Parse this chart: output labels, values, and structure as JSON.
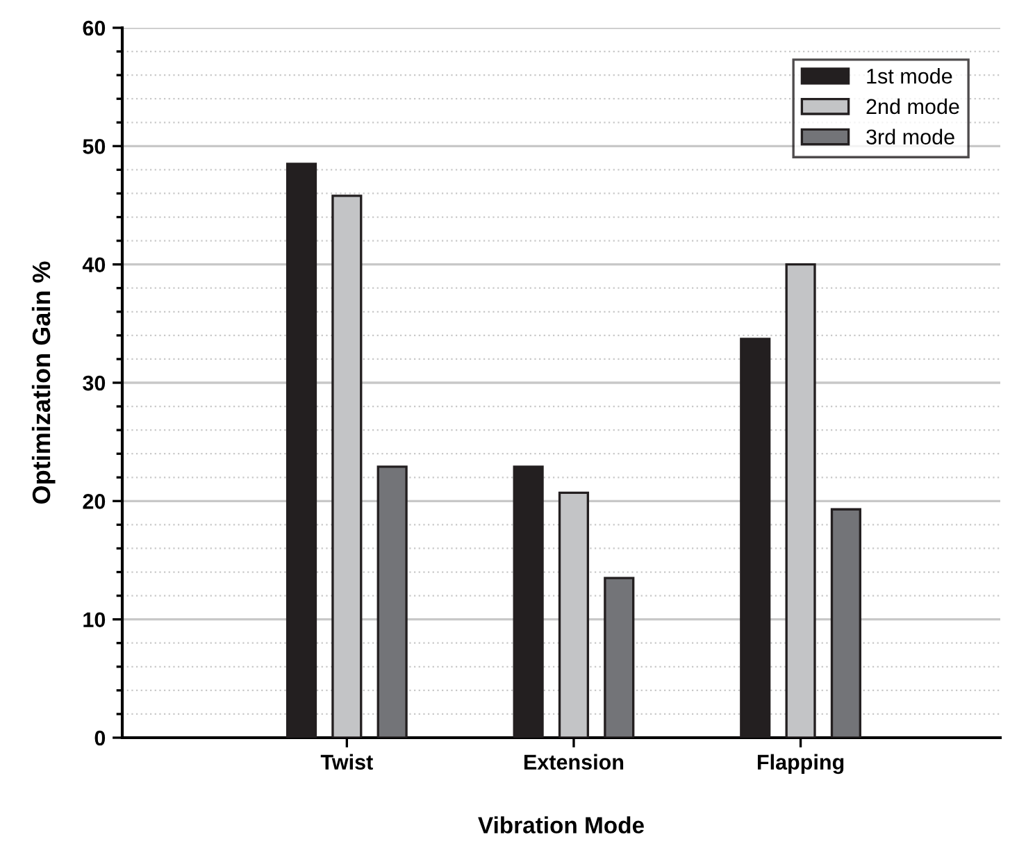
{
  "chart_data": {
    "type": "bar",
    "xlabel": "Vibration Mode",
    "ylabel": "Optimization Gain %",
    "categories": [
      "Twist",
      "Extension",
      "Flapping"
    ],
    "series": [
      {
        "name": "1st mode",
        "color": "#231f20",
        "values": [
          48.5,
          22.9,
          33.7
        ]
      },
      {
        "name": "2nd mode",
        "color": "#c3c4c6",
        "values": [
          45.8,
          20.7,
          40.0
        ]
      },
      {
        "name": "3rd mode",
        "color": "#737478",
        "values": [
          22.9,
          13.5,
          19.3
        ]
      }
    ],
    "ylim": [
      0,
      60
    ],
    "yticks": [
      0,
      10,
      20,
      30,
      40,
      50,
      60
    ],
    "grid": "y",
    "legend": "top right"
  }
}
